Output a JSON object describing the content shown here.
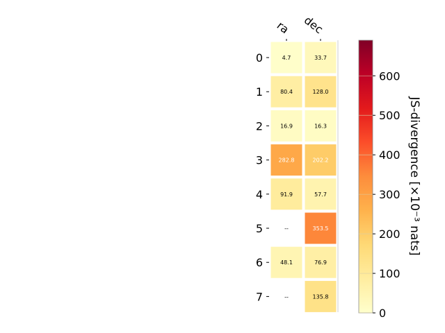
{
  "chart_data": {
    "type": "heatmap",
    "columns": [
      "ra",
      "dec"
    ],
    "rows": [
      "0",
      "1",
      "2",
      "3",
      "4",
      "5",
      "6",
      "7"
    ],
    "values": [
      [
        4.7,
        33.7
      ],
      [
        80.4,
        128.0
      ],
      [
        16.9,
        16.3
      ],
      [
        282.8,
        202.2
      ],
      [
        91.9,
        57.7
      ],
      [
        null,
        353.5
      ],
      [
        48.1,
        76.9
      ],
      [
        null,
        135.8
      ]
    ],
    "cell_labels": [
      [
        "4.7",
        "33.7"
      ],
      [
        "80.4",
        "128.0"
      ],
      [
        "16.9",
        "16.3"
      ],
      [
        "282.8",
        "202.2"
      ],
      [
        "91.9",
        "57.7"
      ],
      [
        "--",
        "353.5"
      ],
      [
        "48.1",
        "76.9"
      ],
      [
        "--",
        "135.8"
      ]
    ],
    "colorbar": {
      "label": "JS-divergence [×10⁻³ nats]",
      "range": [
        0,
        690
      ],
      "ticks": [
        "0",
        "100",
        "200",
        "300",
        "400",
        "500",
        "600"
      ],
      "tick_values": [
        0,
        100,
        200,
        300,
        400,
        500,
        600
      ]
    },
    "colormap": "YlOrRd",
    "grid": false
  }
}
